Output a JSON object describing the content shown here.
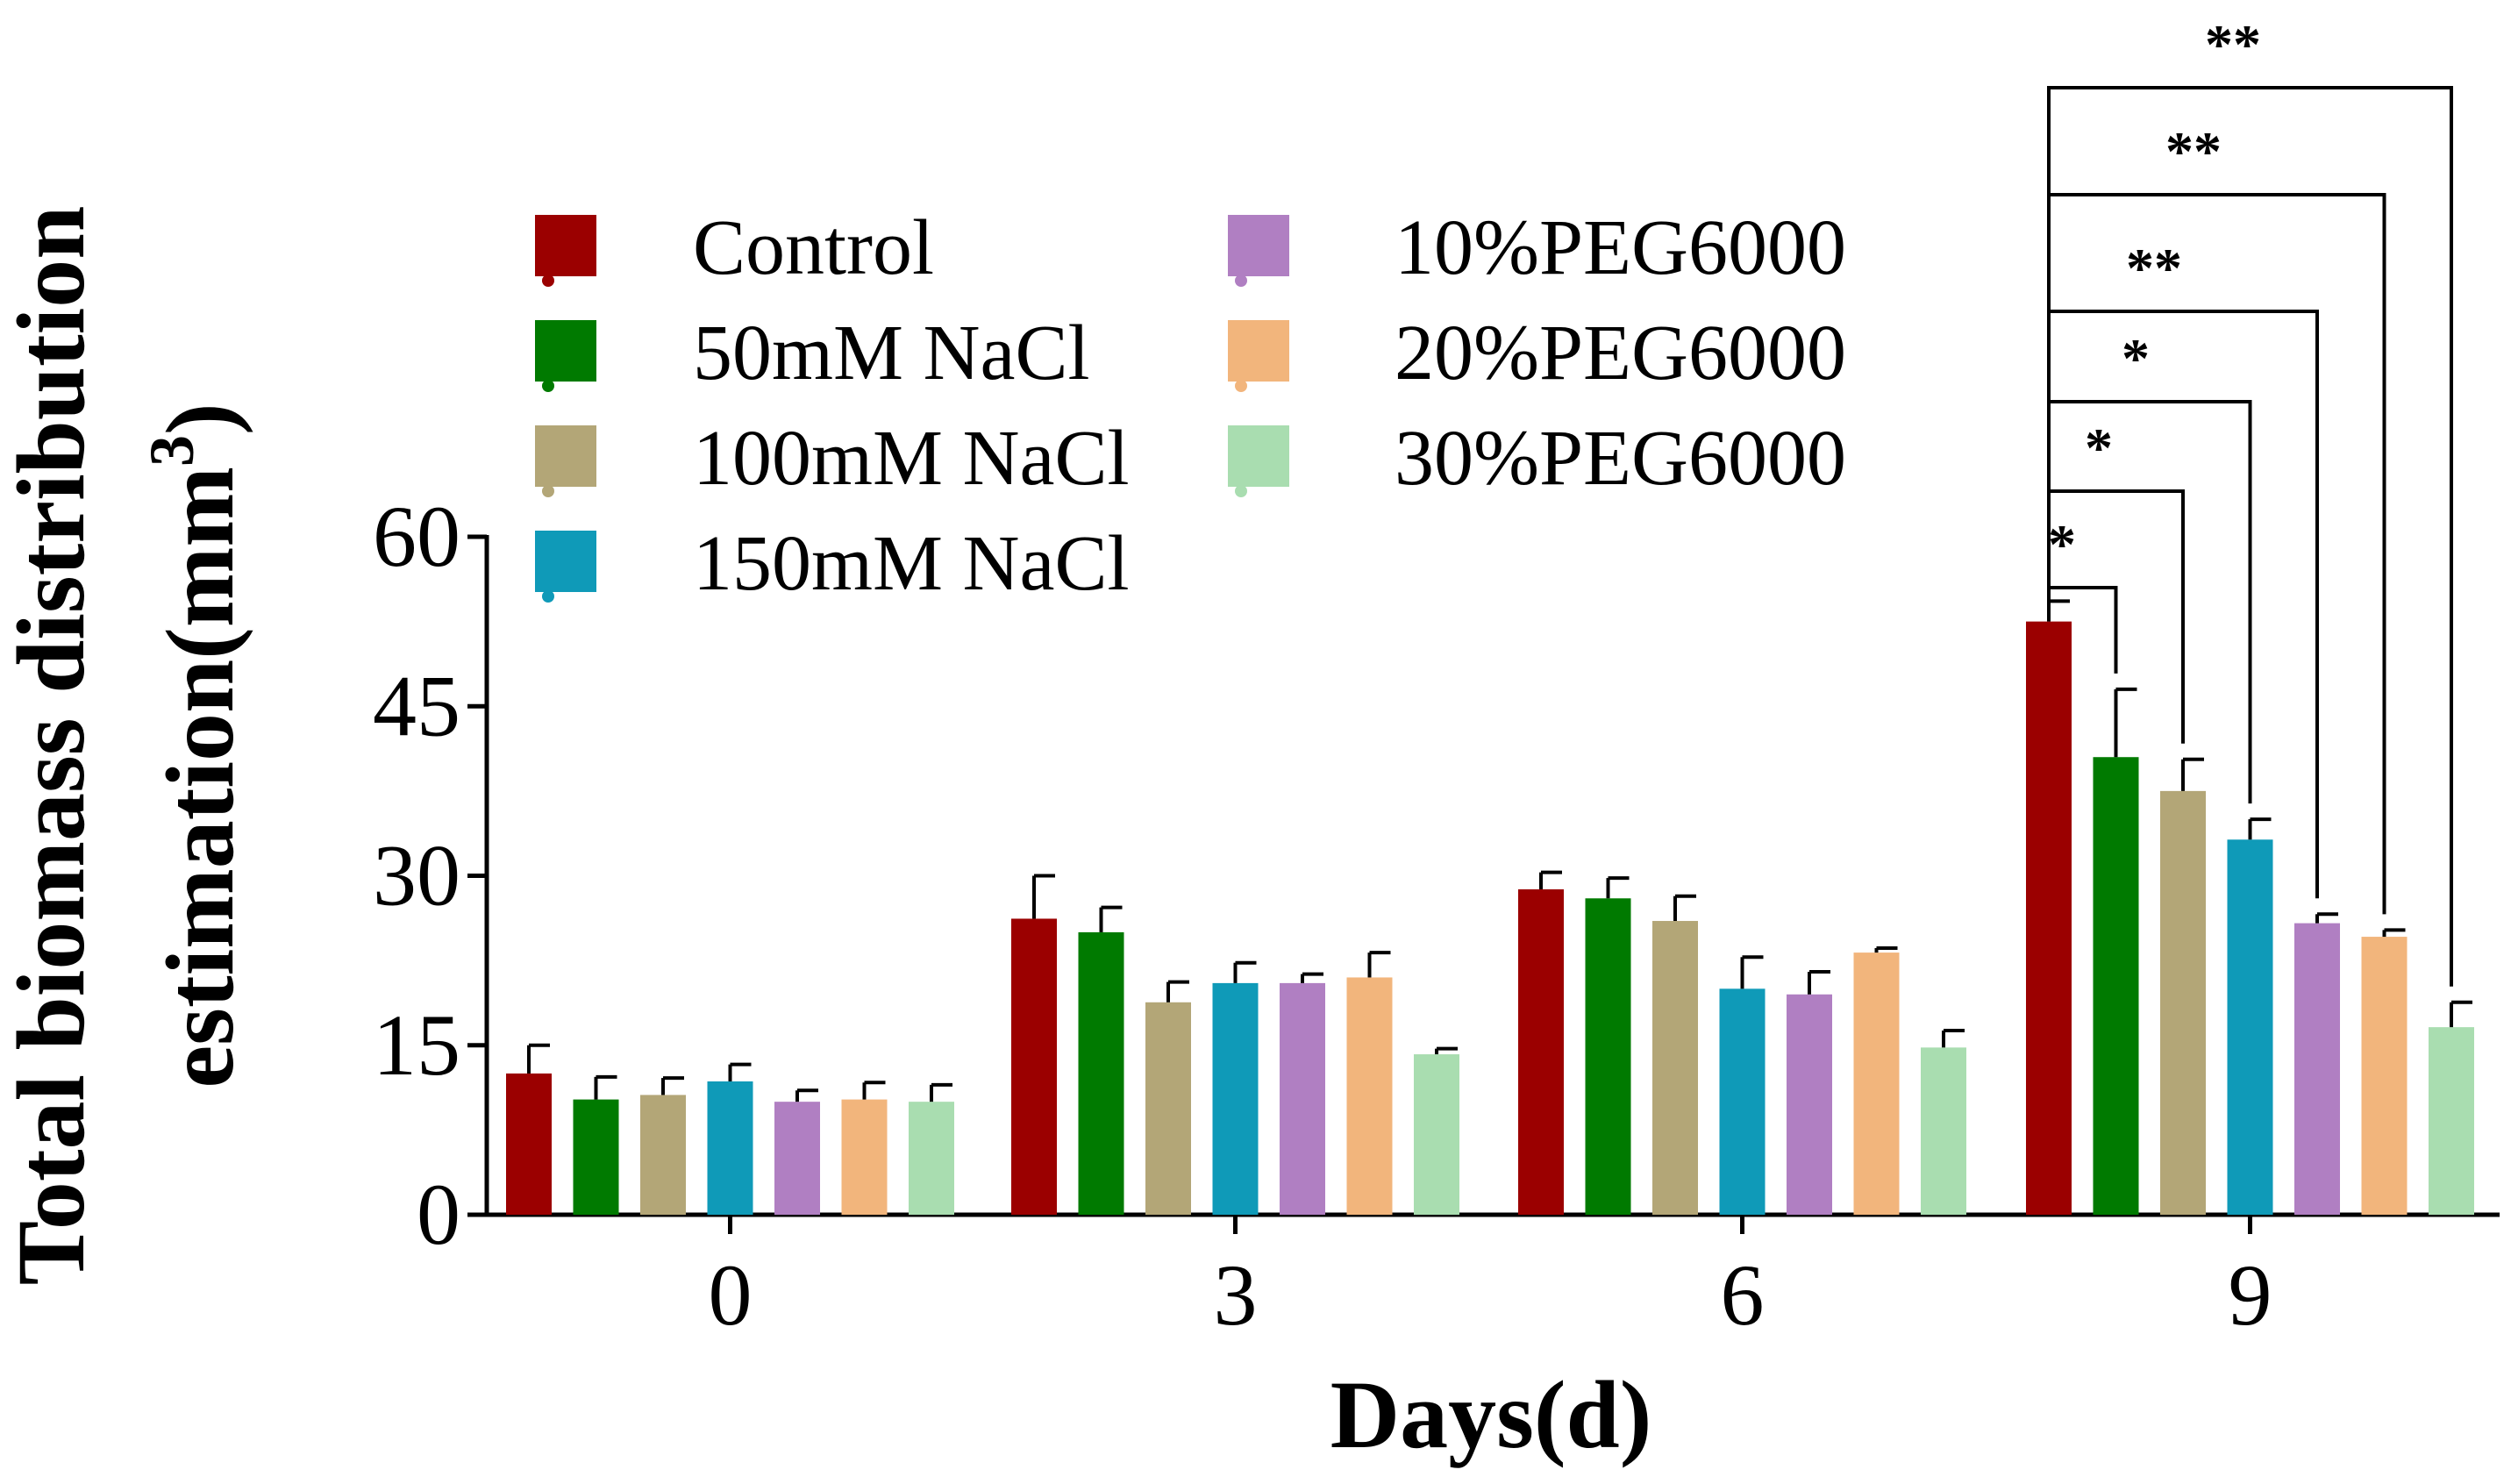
{
  "chart_data": {
    "type": "bar",
    "xlabel": "Days(d)",
    "ylabel_line1": "Total biomass distribution",
    "ylabel_line2": "estimation(mm",
    "ylabel_sup": "3",
    "ylabel_close": ")",
    "categories": [
      "0",
      "3",
      "6",
      "9"
    ],
    "ylim": [
      0,
      60
    ],
    "yticks": [
      "0",
      "15",
      "30",
      "45",
      "60"
    ],
    "series": [
      {
        "name": "Control",
        "color": "#9b0000",
        "values": [
          12.5,
          26.2,
          28.8,
          52.5
        ],
        "errors": [
          2.5,
          3.8,
          1.5,
          1.8
        ]
      },
      {
        "name": "50mM NaCl",
        "color": "#007a00",
        "values": [
          10.2,
          25.0,
          28.0,
          40.5
        ],
        "errors": [
          2.0,
          2.2,
          1.8,
          6.0
        ]
      },
      {
        "name": "100mM NaCl",
        "color": "#b3a677",
        "values": [
          10.6,
          18.8,
          26.0,
          37.5
        ],
        "errors": [
          1.5,
          1.8,
          2.2,
          2.8
        ]
      },
      {
        "name": "150mM NaCl",
        "color": "#0f9ab8",
        "values": [
          11.8,
          20.5,
          20.0,
          33.2
        ],
        "errors": [
          1.5,
          1.8,
          2.8,
          1.8
        ]
      },
      {
        "name": "10%PEG6000",
        "color": "#b07fc2",
        "values": [
          10.0,
          20.5,
          19.5,
          25.8
        ],
        "errors": [
          1.0,
          0.8,
          2.0,
          0.8
        ]
      },
      {
        "name": "20%PEG6000",
        "color": "#f2b57c",
        "values": [
          10.2,
          21.0,
          23.2,
          24.6
        ],
        "errors": [
          1.5,
          2.2,
          0.4,
          0.6
        ]
      },
      {
        "name": "30%PEG6000",
        "color": "#a9ddb0",
        "values": [
          10.0,
          14.2,
          14.8,
          16.6
        ],
        "errors": [
          1.5,
          0.5,
          1.5,
          2.2
        ]
      }
    ],
    "significance": [
      {
        "label": "*",
        "to_series": 1
      },
      {
        "label": "*",
        "to_series": 2
      },
      {
        "label": "*",
        "to_series": 3
      },
      {
        "label": "**",
        "to_series": 4
      },
      {
        "label": "**",
        "to_series": 5
      },
      {
        "label": "**",
        "to_series": 6
      }
    ],
    "legend": {
      "placement": "top-left",
      "columns": 2
    }
  }
}
